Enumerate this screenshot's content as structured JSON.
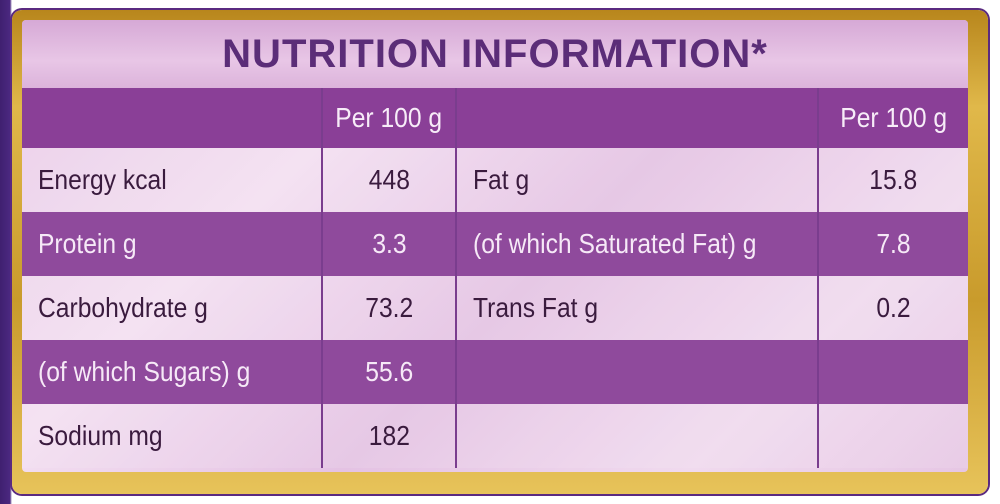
{
  "title": "NUTRITION INFORMATION*",
  "colors": {
    "purple_text": "#5b2d78",
    "row_dark": "#8f4a9c",
    "panel_light": "#ecd3ea",
    "gold_border": "#d4a83a"
  },
  "table": {
    "header": [
      "",
      "Per 100 g",
      "",
      "Per 100 g"
    ],
    "rows": [
      [
        "Energy kcal",
        "448",
        "Fat g",
        "15.8"
      ],
      [
        "Protein g",
        "3.3",
        "(of which Saturated Fat) g",
        "7.8"
      ],
      [
        "Carbohydrate g",
        "73.2",
        "Trans Fat g",
        "0.2"
      ],
      [
        "(of which Sugars) g",
        "55.6",
        "",
        ""
      ],
      [
        "Sodium mg",
        "182",
        "",
        ""
      ]
    ]
  }
}
